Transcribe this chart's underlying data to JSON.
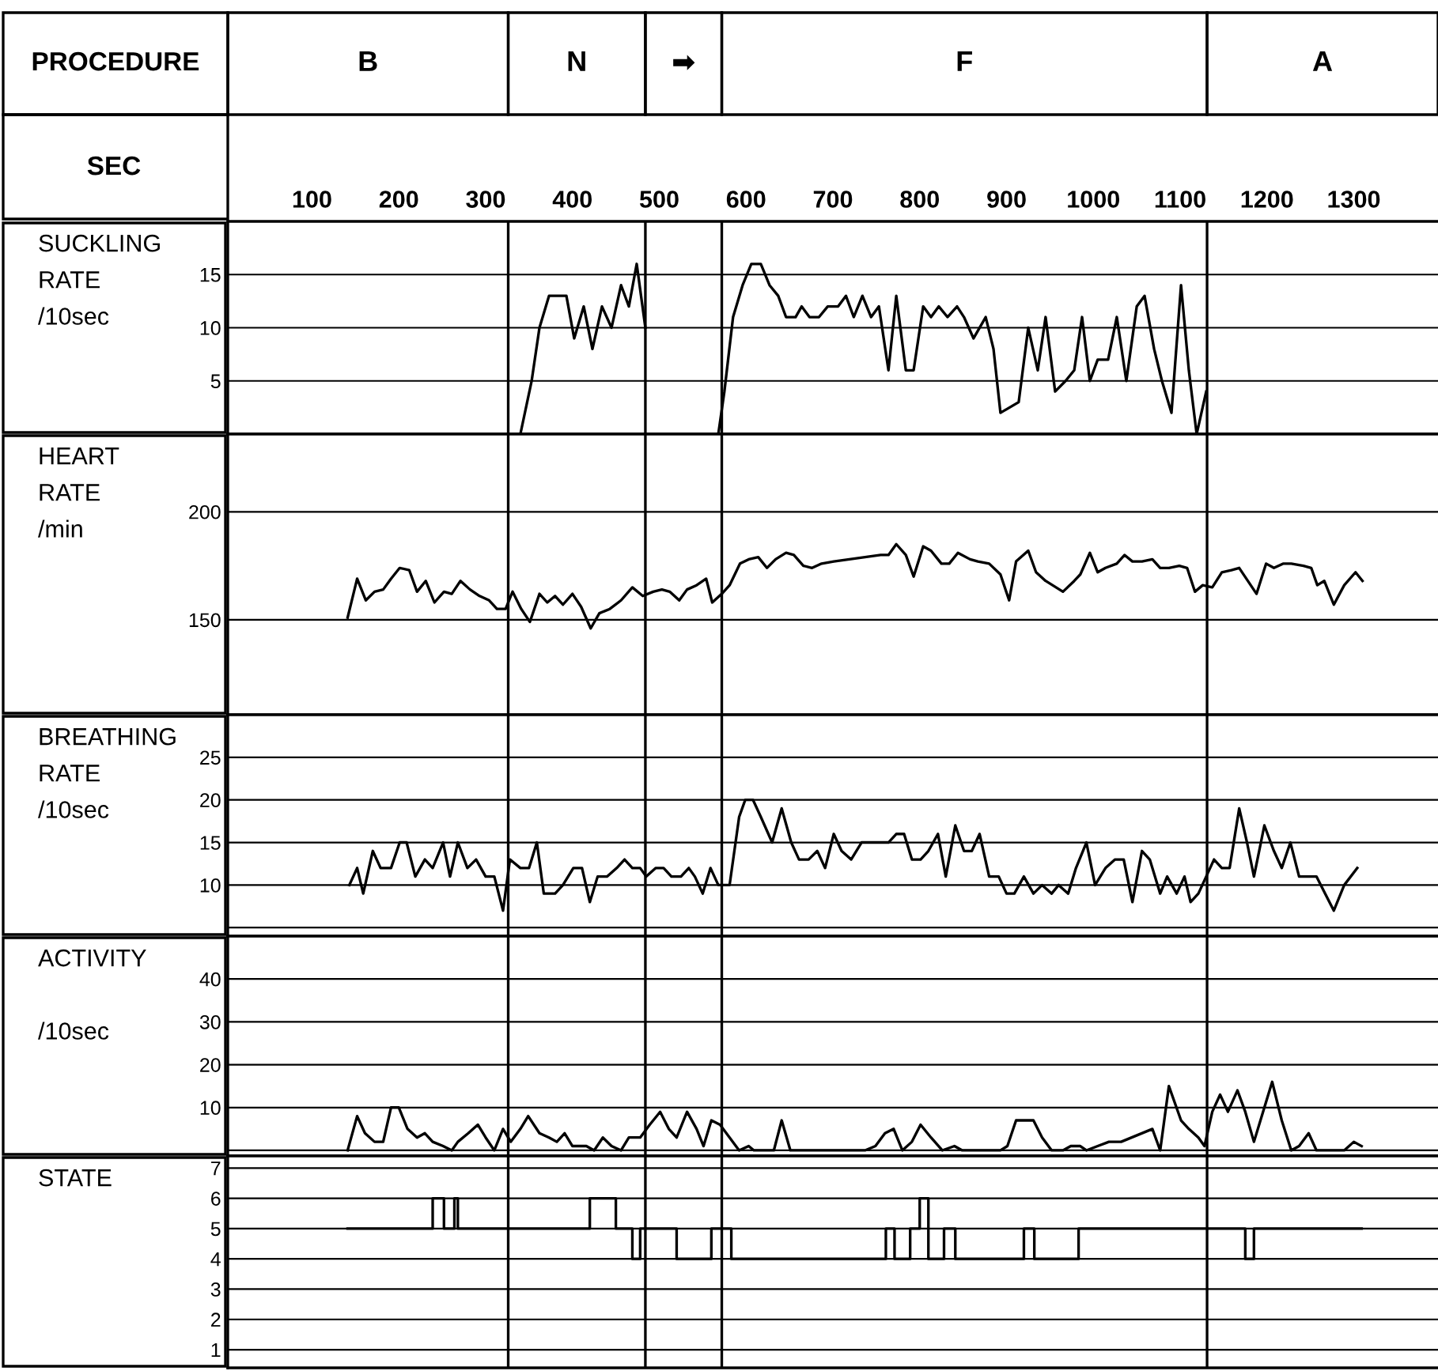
{
  "chart_data": [
    {
      "type": "line",
      "ylabel": "SUCKLING\nRATE\n/10sec",
      "annotations": [
        "PROCEDURE",
        "B",
        "N",
        "➡",
        "F",
        "A"
      ],
      "xlabel": "SEC",
      "xticks": [
        100,
        200,
        300,
        400,
        500,
        600,
        700,
        800,
        900,
        1000,
        1100,
        1200,
        1300
      ],
      "xlim": [
        3,
        1397
      ],
      "ylim": [
        0,
        20
      ],
      "yticks": [
        5,
        10,
        15
      ],
      "grid": "y",
      "ref_lines": [
        {
          "axis": "x",
          "value": 326
        },
        {
          "axis": "x",
          "value": 484
        },
        {
          "axis": "x",
          "value": 572
        },
        {
          "axis": "x",
          "value": 1131
        }
      ],
      "series": [
        {
          "color": "#000000",
          "x": [
            340,
            353,
            362,
            373,
            389,
            393,
            402,
            413,
            423,
            434,
            445,
            456,
            465,
            474,
            484,
            530,
            568,
            575,
            585,
            596,
            606,
            617,
            627,
            637,
            646,
            657,
            664,
            673,
            684,
            694,
            706,
            715,
            724,
            734,
            744,
            753,
            764,
            773,
            784,
            793,
            804,
            813,
            822,
            832,
            843,
            851,
            862,
            876,
            885,
            893,
            914,
            925,
            936,
            945,
            956,
            968,
            978,
            987,
            996,
            1005,
            1017,
            1027,
            1038,
            1050,
            1059,
            1070,
            1079,
            1090,
            1101,
            1110,
            1119,
            1130
          ],
          "values": [
            0,
            5,
            10,
            13,
            13,
            13,
            9,
            12,
            8,
            12,
            10,
            14,
            12,
            16,
            10,
            null,
            0,
            4,
            11,
            14,
            16,
            16,
            14,
            13,
            11,
            11,
            12,
            11,
            11,
            12,
            12,
            13,
            11,
            13,
            11,
            12,
            6,
            13,
            6,
            6,
            12,
            11,
            12,
            11,
            12,
            11,
            9,
            11,
            8,
            2,
            3,
            10,
            6,
            11,
            4,
            5,
            6,
            11,
            5,
            7,
            7,
            11,
            5,
            12,
            13,
            8,
            5,
            2,
            14,
            6,
            0,
            4
          ]
        }
      ]
    },
    {
      "type": "line",
      "ylabel": "HEART\nRATE\n/min",
      "xlim": [
        3,
        1397
      ],
      "ylim": [
        106,
        236
      ],
      "yticks": [
        150,
        200
      ],
      "grid": "y",
      "tick_labels": "y",
      "ref_lines": [
        {
          "axis": "x",
          "value": 326
        },
        {
          "axis": "x",
          "value": 484
        },
        {
          "axis": "x",
          "value": 572
        },
        {
          "axis": "x",
          "value": 1131
        }
      ],
      "series": [
        {
          "color": "#000000",
          "x": [
            141,
            152,
            162,
            172,
            182,
            191,
            201,
            212,
            221,
            231,
            241,
            252,
            261,
            271,
            282,
            293,
            304,
            313,
            323,
            331,
            341,
            351,
            362,
            371,
            380,
            389,
            400,
            410,
            421,
            431,
            443,
            456,
            469,
            481,
            493,
            503,
            512,
            523,
            532,
            543,
            554,
            561,
            572,
            581,
            593,
            603,
            614,
            624,
            634,
            646,
            655,
            666,
            676,
            687,
            701,
            719,
            737,
            755,
            764,
            773,
            784,
            793,
            804,
            813,
            825,
            834,
            844,
            858,
            867,
            880,
            893,
            903,
            911,
            925,
            934,
            945,
            965,
            978,
            985,
            996,
            1005,
            1014,
            1027,
            1036,
            1045,
            1056,
            1068,
            1077,
            1087,
            1099,
            1108,
            1117,
            1126,
            1137,
            1148,
            1159,
            1168,
            1188,
            1199,
            1208,
            1219,
            1228,
            1242,
            1251,
            1258,
            1266,
            1277,
            1289,
            1302,
            1310
          ],
          "values": [
            151,
            169,
            159,
            163,
            164,
            169,
            174,
            173,
            163,
            168,
            158,
            163,
            162,
            168,
            164,
            161,
            159,
            155,
            155,
            163,
            155,
            149,
            162,
            158,
            161,
            157,
            162,
            156,
            146,
            153,
            155,
            159,
            165,
            161,
            163,
            164,
            163,
            159,
            164,
            166,
            169,
            158,
            162,
            166,
            176,
            178,
            179,
            174,
            178,
            181,
            180,
            175,
            174,
            176,
            177,
            178,
            179,
            180,
            180,
            185,
            180,
            170,
            184,
            182,
            176,
            176,
            181,
            178,
            177,
            176,
            171,
            159,
            177,
            182,
            172,
            168,
            163,
            168,
            171,
            181,
            172,
            174,
            176,
            180,
            177,
            177,
            178,
            174,
            174,
            175,
            174,
            163,
            166,
            165,
            172,
            173,
            174,
            162,
            176,
            174,
            176,
            176,
            175,
            174,
            166,
            168,
            157,
            166,
            172,
            168
          ]
        }
      ]
    },
    {
      "type": "line",
      "ylabel": "BREATHING\nRATE\n/10sec",
      "xlim": [
        3,
        1397
      ],
      "ylim": [
        4,
        30
      ],
      "yticks": [
        {
          "value": 5,
          "label": null
        },
        10,
        15,
        20,
        25
      ],
      "grid": "y",
      "tick_labels": "y",
      "ref_lines": [
        {
          "axis": "x",
          "value": 326
        },
        {
          "axis": "x",
          "value": 484
        },
        {
          "axis": "x",
          "value": 572
        },
        {
          "axis": "x",
          "value": 1131
        }
      ],
      "series": [
        {
          "color": "#000000",
          "x": [
            143,
            152,
            159,
            170,
            179,
            191,
            201,
            209,
            219,
            230,
            239,
            251,
            259,
            268,
            279,
            289,
            300,
            310,
            320,
            328,
            340,
            350,
            359,
            367,
            380,
            389,
            401,
            411,
            420,
            429,
            440,
            451,
            460,
            469,
            478,
            485,
            496,
            505,
            514,
            525,
            534,
            541,
            550,
            559,
            568,
            581,
            592,
            599,
            608,
            617,
            630,
            641,
            652,
            661,
            672,
            682,
            691,
            701,
            710,
            721,
            733,
            746,
            764,
            773,
            782,
            791,
            801,
            810,
            821,
            830,
            841,
            851,
            860,
            869,
            880,
            891,
            900,
            909,
            920,
            931,
            941,
            952,
            960,
            971,
            980,
            992,
            1002,
            1014,
            1025,
            1035,
            1045,
            1056,
            1065,
            1077,
            1085,
            1096,
            1105,
            1112,
            1121,
            1130,
            1139,
            1148,
            1157,
            1168,
            1177,
            1185,
            1197,
            1208,
            1217,
            1227,
            1237,
            1248,
            1257,
            1267,
            1277,
            1289,
            1304
          ],
          "values": [
            10,
            12,
            9,
            14,
            12,
            12,
            15,
            15,
            11,
            13,
            12,
            15,
            11,
            15,
            12,
            13,
            11,
            11,
            7,
            13,
            12,
            12,
            15,
            9,
            9,
            10,
            12,
            12,
            8,
            11,
            11,
            12,
            13,
            12,
            12,
            11,
            12,
            12,
            11,
            11,
            12,
            11,
            9,
            12,
            10,
            10,
            18,
            20,
            20,
            18,
            15,
            19,
            15,
            13,
            13,
            14,
            12,
            16,
            14,
            13,
            15,
            15,
            15,
            16,
            16,
            13,
            13,
            14,
            16,
            11,
            17,
            14,
            14,
            16,
            11,
            11,
            9,
            9,
            11,
            9,
            10,
            9,
            10,
            9,
            12,
            15,
            10,
            12,
            13,
            13,
            8,
            14,
            13,
            9,
            11,
            9,
            11,
            8,
            9,
            11,
            13,
            12,
            12,
            19,
            15,
            11,
            17,
            14,
            12,
            15,
            11,
            11,
            11,
            9,
            7,
            10,
            12
          ]
        }
      ]
    },
    {
      "type": "line",
      "ylabel": "ACTIVITY\n\n/10sec",
      "xlim": [
        3,
        1397
      ],
      "ylim": [
        -1.3,
        50
      ],
      "yticks": [
        {
          "value": 0,
          "label": null
        },
        10,
        20,
        30,
        40
      ],
      "grid": "y",
      "tick_labels": "y",
      "ref_lines": [
        {
          "axis": "x",
          "value": 326
        },
        {
          "axis": "x",
          "value": 484
        },
        {
          "axis": "x",
          "value": 572
        },
        {
          "axis": "x",
          "value": 1131
        }
      ],
      "series": [
        {
          "color": "#000000",
          "x": [
            141,
            152,
            161,
            172,
            182,
            191,
            200,
            210,
            221,
            230,
            239,
            251,
            261,
            268,
            280,
            291,
            300,
            310,
            320,
            329,
            340,
            349,
            362,
            373,
            382,
            391,
            400,
            416,
            425,
            435,
            445,
            456,
            465,
            478,
            489,
            501,
            511,
            520,
            532,
            543,
            551,
            560,
            570,
            581,
            592,
            603,
            609,
            632,
            641,
            651,
            737,
            749,
            760,
            770,
            780,
            791,
            801,
            813,
            826,
            840,
            849,
            858,
            867,
            880,
            893,
            901,
            911,
            920,
            931,
            941,
            952,
            965,
            974,
            985,
            992,
            1005,
            1018,
            1032,
            1068,
            1077,
            1087,
            1101,
            1110,
            1121,
            1128,
            1137,
            1146,
            1155,
            1166,
            1175,
            1185,
            1197,
            1206,
            1217,
            1228,
            1237,
            1248,
            1257,
            1289,
            1300,
            1309
          ],
          "values": [
            0,
            8,
            4,
            2,
            2,
            10,
            10,
            5,
            3,
            4,
            2,
            1,
            0,
            2,
            4,
            6,
            3,
            0,
            5,
            2,
            5,
            8,
            4,
            3,
            2,
            4,
            1,
            1,
            0,
            3,
            1,
            0,
            3,
            3,
            6,
            9,
            5,
            3,
            9,
            5,
            1,
            7,
            6,
            3,
            0,
            1,
            0,
            0,
            7,
            0,
            0,
            1,
            4,
            5,
            0,
            2,
            6,
            3,
            0,
            1,
            0,
            0,
            0,
            0,
            0,
            1,
            7,
            7,
            7,
            3,
            0,
            0,
            1,
            1,
            0,
            1,
            2,
            2,
            5,
            0,
            15,
            7,
            5,
            3,
            1,
            9,
            13,
            9,
            14,
            9,
            2,
            10,
            16,
            7,
            0,
            1,
            4,
            0,
            0,
            2,
            1
          ]
        }
      ]
    },
    {
      "type": "step",
      "ylabel": "STATE",
      "xlim": [
        3,
        1397
      ],
      "ylim": [
        0.4,
        7.4
      ],
      "yticks": [
        1,
        2,
        3,
        4,
        5,
        6,
        7
      ],
      "grid": "y",
      "tick_labels": "y",
      "ref_lines": [
        {
          "axis": "x",
          "value": 326
        },
        {
          "axis": "x",
          "value": 484
        },
        {
          "axis": "x",
          "value": 572
        },
        {
          "axis": "x",
          "value": 1131
        }
      ],
      "series": [
        {
          "color": "#000000",
          "x": [
            141,
            239,
            252,
            264,
            268,
            420,
            450,
            469,
            478,
            520,
            560,
            583,
            761,
            771,
            789,
            800,
            810,
            828,
            841,
            920,
            932,
            983,
            1175,
            1185,
            1309
          ],
          "values": [
            5,
            6,
            5,
            6,
            5,
            6,
            5,
            4,
            5,
            4,
            5,
            4,
            5,
            4,
            5,
            6,
            4,
            5,
            4,
            5,
            4,
            5,
            4,
            5,
            5
          ]
        }
      ]
    }
  ]
}
